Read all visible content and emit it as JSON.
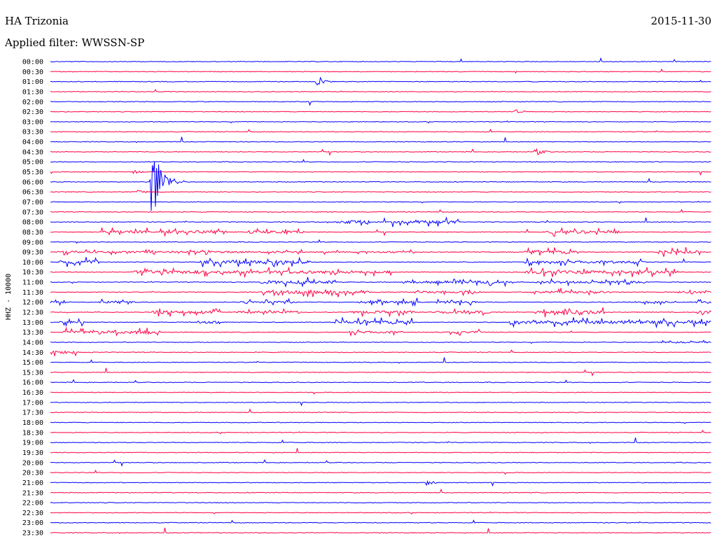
{
  "header": {
    "station": "HA Trizonia",
    "date": "2015-11-30",
    "filter_label": "Applied filter: WWSSN-SP"
  },
  "colors": {
    "trace_a": "#0000ff",
    "trace_b": "#ff0044",
    "background": "#ffffff",
    "text": "#000000"
  },
  "chart_data": {
    "type": "line",
    "title": "HA Trizonia",
    "ylabel": "HHZ - 10000",
    "ticks": [
      "00:00",
      "00:30",
      "01:00",
      "01:30",
      "02:00",
      "02:30",
      "03:00",
      "03:30",
      "04:00",
      "04:30",
      "05:00",
      "05:30",
      "06:00",
      "06:30",
      "07:00",
      "07:30",
      "08:00",
      "08:30",
      "09:00",
      "09:30",
      "10:00",
      "10:30",
      "11:00",
      "11:30",
      "12:00",
      "12:30",
      "13:00",
      "13:30",
      "14:00",
      "14:30",
      "15:00",
      "15:30",
      "16:00",
      "16:30",
      "17:00",
      "17:30",
      "18:00",
      "18:30",
      "19:00",
      "19:30",
      "20:00",
      "20:30",
      "21:00",
      "21:30",
      "22:00",
      "22:30",
      "23:00",
      "23:30"
    ],
    "row_minutes": 30,
    "color_cycle": [
      "blue",
      "red"
    ],
    "events": [
      {
        "row": 2,
        "minute": 12,
        "amplitude": 0.7,
        "width_min": 1.5
      },
      {
        "row": 5,
        "minute": 21,
        "amplitude": 0.5,
        "width_min": 1.3
      },
      {
        "row": 9,
        "minute": 22,
        "amplitude": 0.6,
        "width_min": 1.4
      },
      {
        "row": 11,
        "minute": 3.7,
        "amplitude": 0.5,
        "width_min": 1.2
      },
      {
        "row": 12,
        "minute": 4.5,
        "amplitude": 8.0,
        "width_min": 1.6
      },
      {
        "row": 13,
        "minute": 3.9,
        "amplitude": 0.6,
        "width_min": 1.3
      },
      {
        "row": 42,
        "minute": 17,
        "amplitude": 0.6,
        "width_min": 1.2
      }
    ],
    "noise_bursts": [
      {
        "row": 16,
        "start_min": 13,
        "end_min": 14.5,
        "amplitude": 0.9
      },
      {
        "row": 16,
        "start_min": 15.5,
        "end_min": 18.5,
        "amplitude": 0.9
      },
      {
        "row": 17,
        "start_min": 2.2,
        "end_min": 4.5,
        "amplitude": 0.8
      },
      {
        "row": 17,
        "start_min": 5,
        "end_min": 8,
        "amplitude": 0.8
      },
      {
        "row": 17,
        "start_min": 9,
        "end_min": 11.5,
        "amplitude": 0.8
      },
      {
        "row": 17,
        "start_min": 22.5,
        "end_min": 26,
        "amplitude": 0.8
      },
      {
        "row": 19,
        "start_min": 0.3,
        "end_min": 11.5,
        "amplitude": 0.5
      },
      {
        "row": 19,
        "start_min": 12,
        "end_min": 16.5,
        "amplitude": 0.4
      },
      {
        "row": 19,
        "start_min": 21.5,
        "end_min": 24,
        "amplitude": 0.9
      },
      {
        "row": 19,
        "start_min": 27.5,
        "end_min": 29.5,
        "amplitude": 0.9
      },
      {
        "row": 20,
        "start_min": 0.4,
        "end_min": 2.2,
        "amplitude": 0.9
      },
      {
        "row": 20,
        "start_min": 6.8,
        "end_min": 11.8,
        "amplitude": 0.9
      },
      {
        "row": 20,
        "start_min": 21.5,
        "end_min": 27,
        "amplitude": 0.7
      },
      {
        "row": 21,
        "start_min": 3.8,
        "end_min": 14,
        "amplitude": 0.9
      },
      {
        "row": 21,
        "start_min": 14,
        "end_min": 15.5,
        "amplitude": 0.7
      },
      {
        "row": 21,
        "start_min": 21.5,
        "end_min": 28.5,
        "amplitude": 0.9
      },
      {
        "row": 22,
        "start_min": 9.5,
        "end_min": 13,
        "amplitude": 0.9
      },
      {
        "row": 22,
        "start_min": 16,
        "end_min": 21,
        "amplitude": 0.7
      },
      {
        "row": 22,
        "start_min": 22,
        "end_min": 27,
        "amplitude": 0.6
      },
      {
        "row": 23,
        "start_min": 9.5,
        "end_min": 14.5,
        "amplitude": 0.9
      },
      {
        "row": 23,
        "start_min": 16.5,
        "end_min": 19.5,
        "amplitude": 0.6
      },
      {
        "row": 23,
        "start_min": 21.8,
        "end_min": 25.5,
        "amplitude": 0.6
      },
      {
        "row": 23,
        "start_min": 28.5,
        "end_min": 30,
        "amplitude": 0.6
      },
      {
        "row": 24,
        "start_min": 0,
        "end_min": 0.8,
        "amplitude": 0.6
      },
      {
        "row": 24,
        "start_min": 2.1,
        "end_min": 3.9,
        "amplitude": 0.6
      },
      {
        "row": 24,
        "start_min": 8.6,
        "end_min": 11.2,
        "amplitude": 0.6
      },
      {
        "row": 24,
        "start_min": 14,
        "end_min": 16.9,
        "amplitude": 0.6
      },
      {
        "row": 24,
        "start_min": 17.5,
        "end_min": 19.5,
        "amplitude": 0.6
      },
      {
        "row": 24,
        "start_min": 26.5,
        "end_min": 28.5,
        "amplitude": 0.6
      },
      {
        "row": 24,
        "start_min": 29.3,
        "end_min": 30,
        "amplitude": 0.6
      },
      {
        "row": 25,
        "start_min": 4.6,
        "end_min": 7.7,
        "amplitude": 0.9
      },
      {
        "row": 25,
        "start_min": 8.3,
        "end_min": 11.3,
        "amplitude": 0.7
      },
      {
        "row": 25,
        "start_min": 13.6,
        "end_min": 16.5,
        "amplitude": 0.8
      },
      {
        "row": 25,
        "start_min": 17.5,
        "end_min": 20,
        "amplitude": 0.7
      },
      {
        "row": 25,
        "start_min": 22,
        "end_min": 25.2,
        "amplitude": 0.9
      },
      {
        "row": 25,
        "start_min": 29.3,
        "end_min": 30,
        "amplitude": 0.9
      },
      {
        "row": 26,
        "start_min": 0.4,
        "end_min": 1.6,
        "amplitude": 0.7
      },
      {
        "row": 26,
        "start_min": 6.6,
        "end_min": 7.7,
        "amplitude": 0.7
      },
      {
        "row": 26,
        "start_min": 12.9,
        "end_min": 16.5,
        "amplitude": 0.9
      },
      {
        "row": 26,
        "start_min": 20.8,
        "end_min": 28.5,
        "amplitude": 0.9
      },
      {
        "row": 26,
        "start_min": 28.8,
        "end_min": 30,
        "amplitude": 0.8
      },
      {
        "row": 27,
        "start_min": 0.6,
        "end_min": 5,
        "amplitude": 0.8
      },
      {
        "row": 27,
        "start_min": 13.5,
        "end_min": 16,
        "amplitude": 0.6
      },
      {
        "row": 27,
        "start_min": 18,
        "end_min": 19.5,
        "amplitude": 0.6
      },
      {
        "row": 28,
        "start_min": 27.7,
        "end_min": 30,
        "amplitude": 0.35
      },
      {
        "row": 29,
        "start_min": 0,
        "end_min": 1.2,
        "amplitude": 0.8
      }
    ]
  }
}
